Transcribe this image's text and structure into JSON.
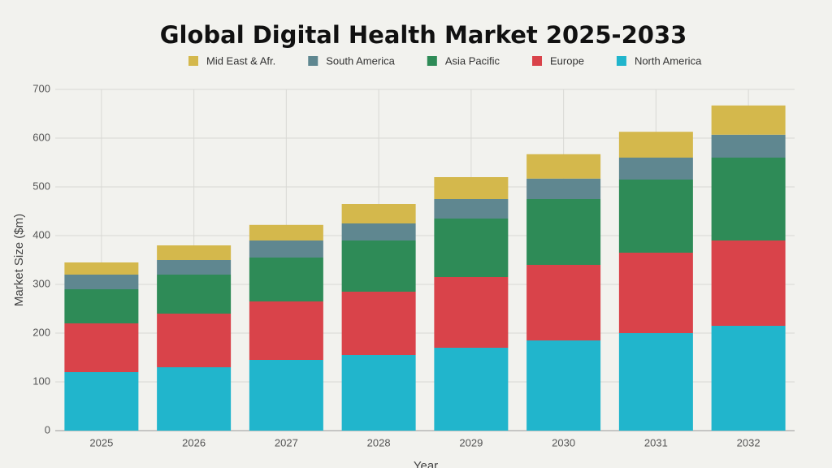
{
  "chart_data": {
    "type": "stacked_bar",
    "title": "Global Digital Health Market 2025-2033",
    "x_label": "Year",
    "y_label": "Market Size ($m)",
    "categories": [
      "2025",
      "2026",
      "2027",
      "2028",
      "2029",
      "2030",
      "2031",
      "2032"
    ],
    "series": [
      {
        "name": "Mid East & Afr.",
        "color": "#d4b84c",
        "values": [
          25,
          30,
          32,
          40,
          45,
          50,
          53,
          60
        ]
      },
      {
        "name": "South America",
        "color": "#5f8790",
        "values": [
          30,
          30,
          35,
          35,
          40,
          42,
          45,
          47
        ]
      },
      {
        "name": "Asia Pacific",
        "color": "#2e8b57",
        "values": [
          70,
          80,
          90,
          105,
          120,
          135,
          150,
          170
        ]
      },
      {
        "name": "Europe",
        "color": "#d9434a",
        "values": [
          100,
          110,
          120,
          130,
          145,
          155,
          165,
          175
        ]
      },
      {
        "name": "North America",
        "color": "#21b5cc",
        "values": [
          120,
          130,
          145,
          155,
          170,
          185,
          200,
          215
        ]
      }
    ],
    "ylim": [
      0,
      700
    ],
    "yticks": [
      0,
      100,
      200,
      300,
      400,
      500,
      600,
      700
    ],
    "grid": true,
    "legend": "top"
  }
}
